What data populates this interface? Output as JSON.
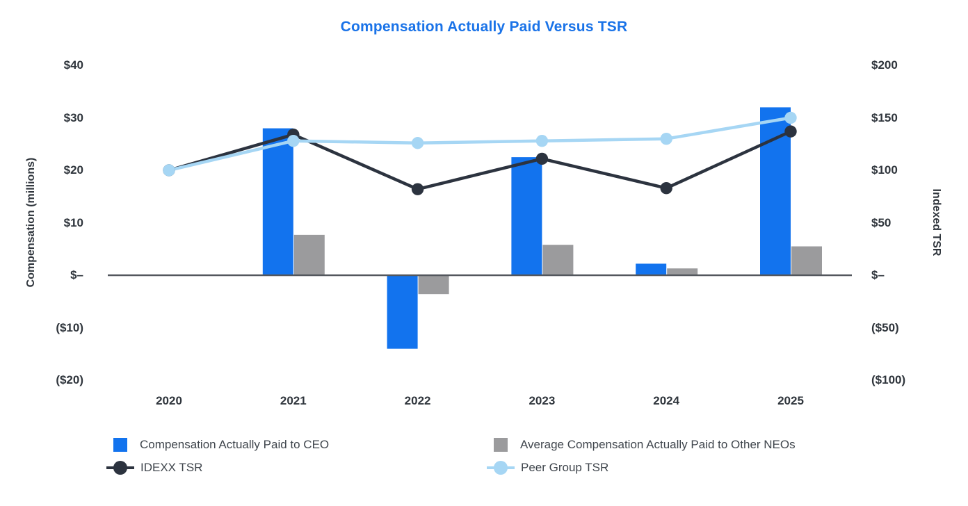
{
  "title": "Compensation Actually Paid Versus TSR",
  "colors": {
    "title": "#1a73e8",
    "ceo_bar": "#1273ee",
    "neo_bar": "#9b9b9d",
    "idexx_line": "#2c333f",
    "peer_line": "#a6d6f4",
    "axis_text": "#2f353c",
    "baseline": "#53575d",
    "legend_text": "#3f454c"
  },
  "chart_data": {
    "type": "combo-bar-line",
    "title": "Compensation Actually Paid Versus TSR",
    "categories": [
      "2020",
      "2021",
      "2022",
      "2023",
      "2024",
      "2025"
    ],
    "bar_series": [
      {
        "name": "Compensation Actually Paid to CEO",
        "color": "#1273ee",
        "axis": "left",
        "values": [
          null,
          28,
          -14,
          22.5,
          2.2,
          32
        ]
      },
      {
        "name": "Average Compensation Actually Paid to Other NEOs",
        "color": "#9b9b9d",
        "axis": "left",
        "values": [
          null,
          7.7,
          -3.6,
          5.8,
          1.3,
          5.5
        ]
      }
    ],
    "line_series": [
      {
        "name": "IDEXX TSR",
        "color": "#2c333f",
        "axis": "right",
        "values": [
          100,
          134,
          82,
          111,
          83,
          137
        ]
      },
      {
        "name": "Peer Group TSR",
        "color": "#a6d6f4",
        "axis": "right",
        "values": [
          100,
          128,
          126,
          128,
          130,
          150
        ]
      }
    ],
    "left_axis": {
      "label": "Compensation (millions)",
      "lim": [
        -20,
        40
      ],
      "ticks": [
        {
          "v": 40,
          "label": "$40"
        },
        {
          "v": 30,
          "label": "$30"
        },
        {
          "v": 20,
          "label": "$20"
        },
        {
          "v": 10,
          "label": "$10"
        },
        {
          "v": 0,
          "label": "$–"
        },
        {
          "v": -10,
          "label": "($10)"
        },
        {
          "v": -20,
          "label": "($20)"
        }
      ]
    },
    "right_axis": {
      "label": "Indexed TSR",
      "lim": [
        -100,
        200
      ],
      "ticks": [
        {
          "v": 200,
          "label": "$200"
        },
        {
          "v": 150,
          "label": "$150"
        },
        {
          "v": 100,
          "label": "$100"
        },
        {
          "v": 50,
          "label": "$50"
        },
        {
          "v": 0,
          "label": "$–"
        },
        {
          "v": -50,
          "label": "($50)"
        },
        {
          "v": -100,
          "label": "($100)"
        }
      ]
    },
    "legend_position": "bottom",
    "grid": false
  }
}
